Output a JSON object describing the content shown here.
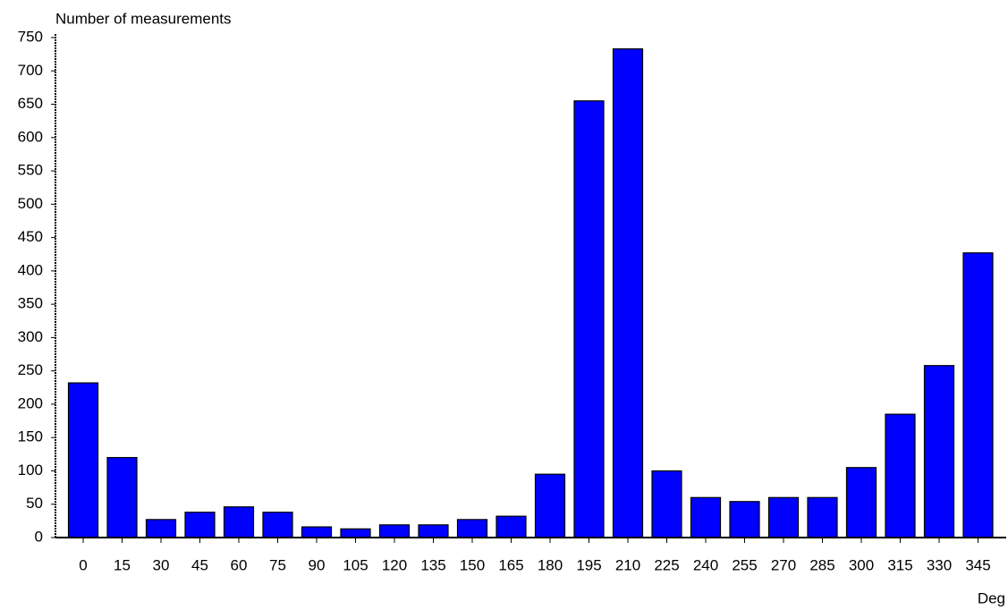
{
  "chart_data": {
    "type": "bar",
    "y_label": "Number of measurements",
    "x_label": "Deg",
    "categories": [
      "0",
      "15",
      "30",
      "45",
      "60",
      "75",
      "90",
      "105",
      "120",
      "135",
      "150",
      "165",
      "180",
      "195",
      "210",
      "225",
      "240",
      "255",
      "270",
      "285",
      "300",
      "315",
      "330",
      "345"
    ],
    "values": [
      232,
      120,
      27,
      38,
      46,
      38,
      16,
      13,
      19,
      19,
      27,
      32,
      95,
      655,
      733,
      100,
      60,
      54,
      60,
      60,
      105,
      185,
      258,
      427
    ],
    "color": "#0000ff",
    "ylim": [
      0,
      750
    ],
    "yticks": [
      0,
      50,
      100,
      150,
      200,
      250,
      300,
      350,
      400,
      450,
      500,
      550,
      600,
      650,
      700,
      750
    ]
  }
}
